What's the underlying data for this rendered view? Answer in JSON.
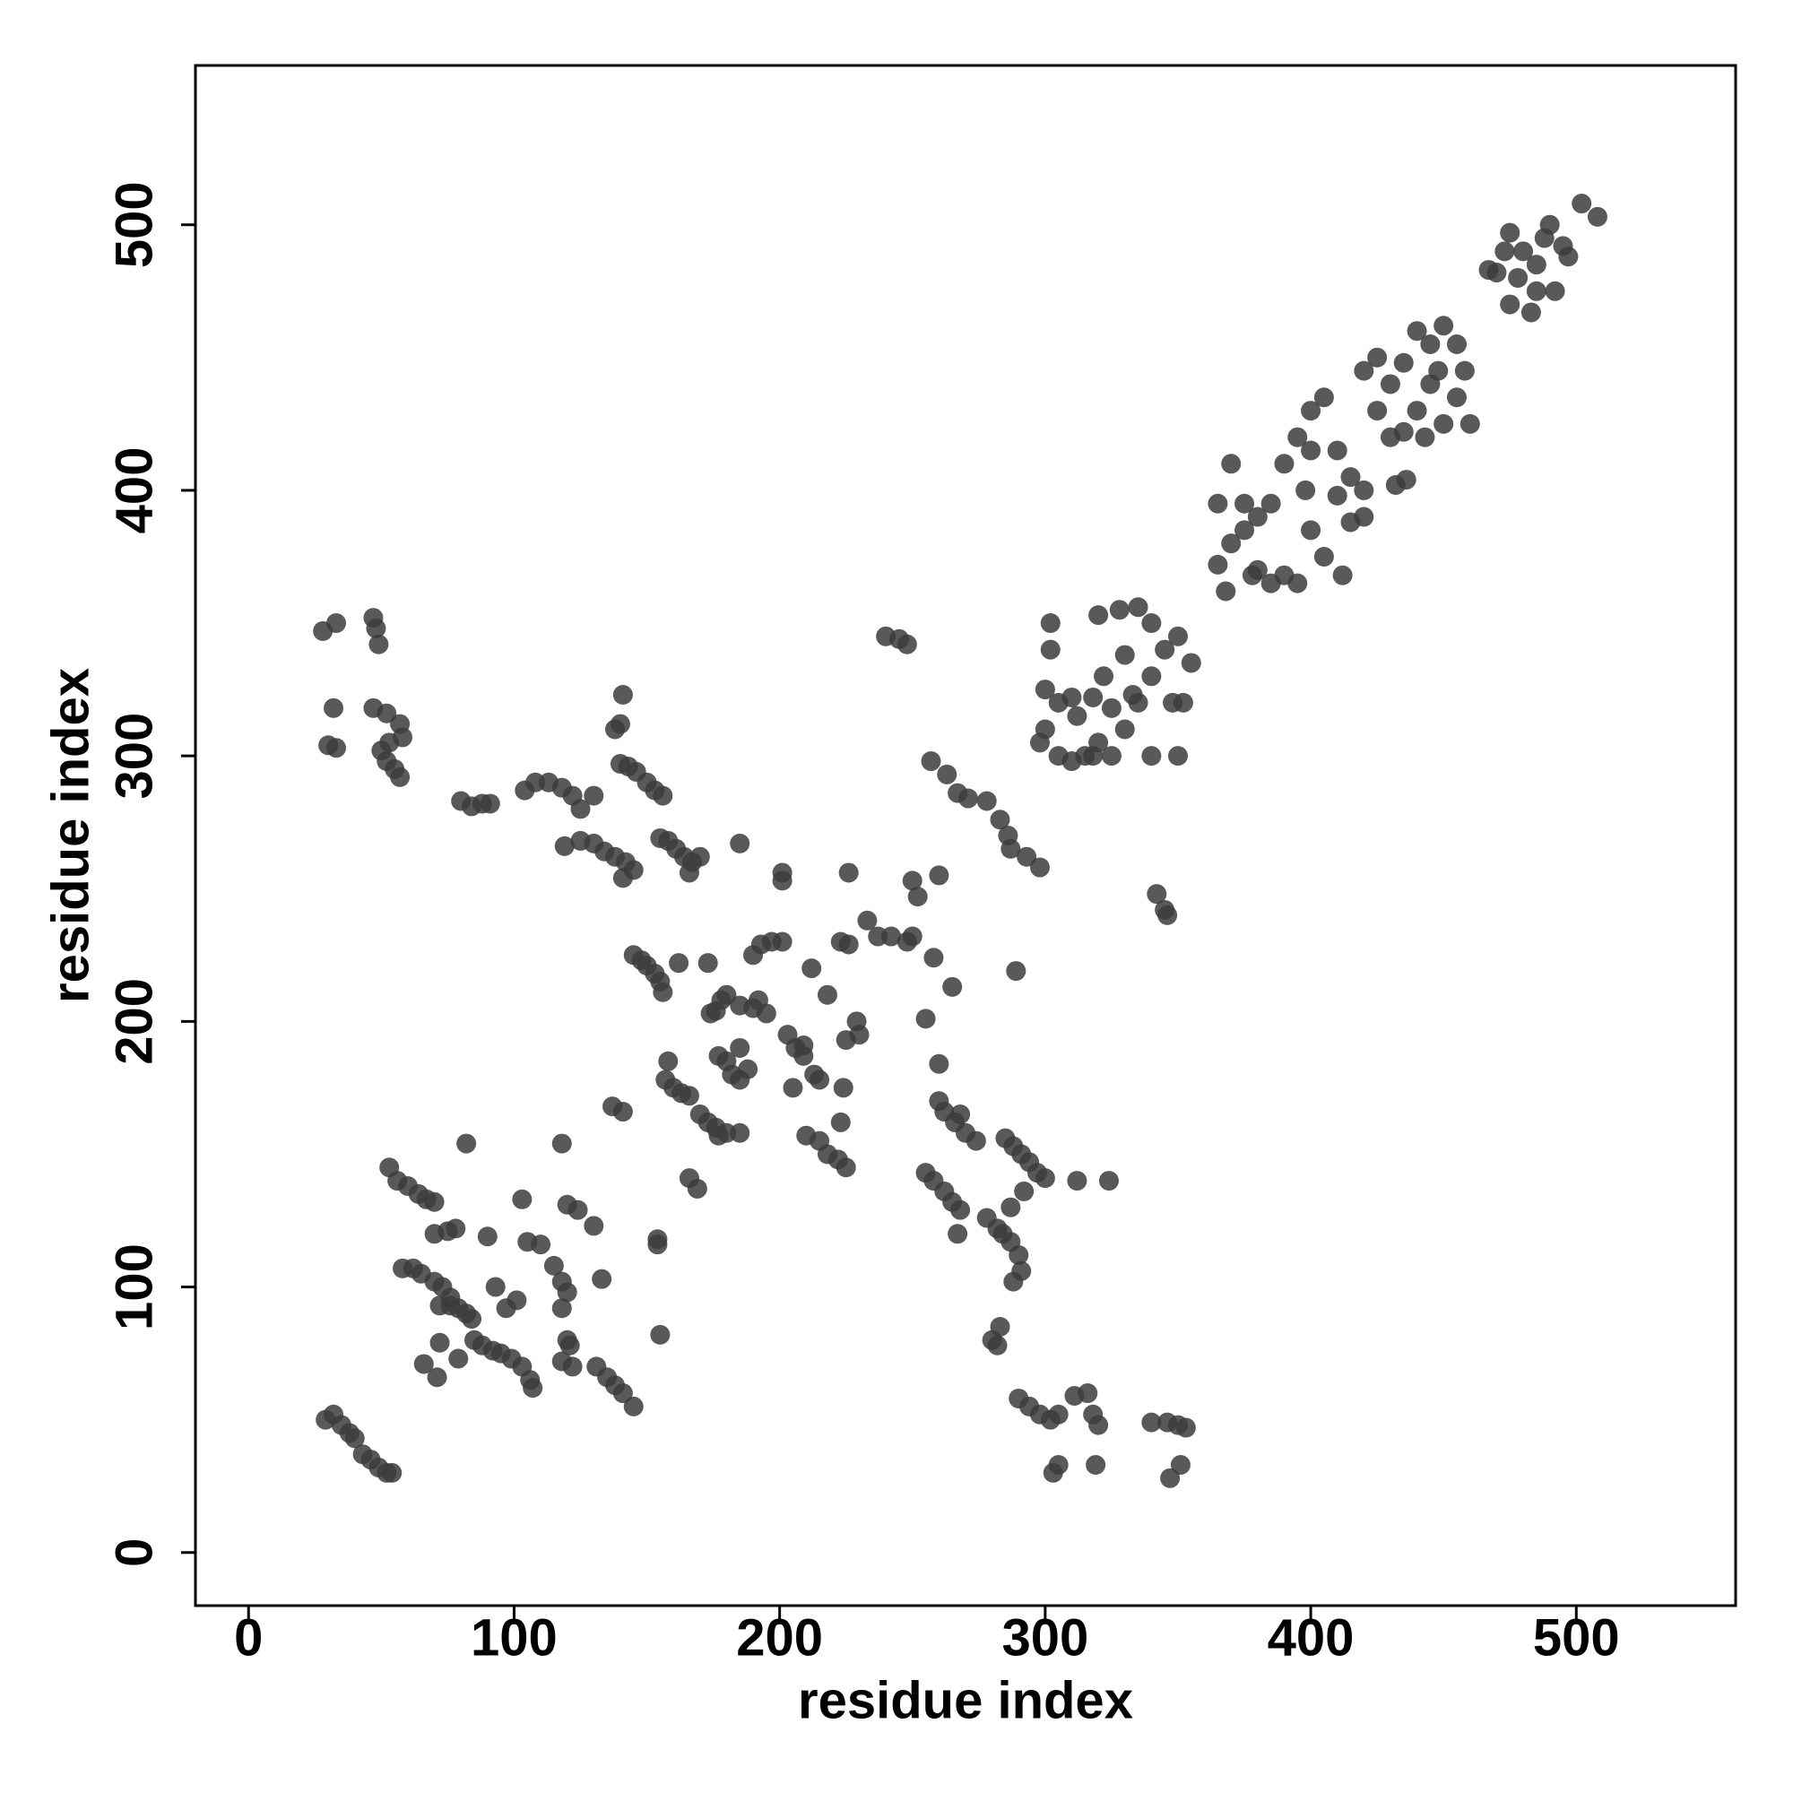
{
  "chart_data": {
    "type": "scatter",
    "xlabel": "residue index",
    "ylabel": "residue index",
    "color": "#3c3c3c",
    "xlim": [
      -20,
      560
    ],
    "ylim": [
      -20,
      560
    ],
    "xticks": [
      0,
      100,
      200,
      300,
      400,
      500
    ],
    "yticks": [
      0,
      100,
      200,
      300,
      400,
      500
    ],
    "x": [
      502,
      508,
      475,
      480,
      485,
      490,
      495,
      478,
      485,
      492,
      497,
      470,
      475,
      483,
      488,
      467,
      473,
      425,
      430,
      435,
      440,
      445,
      450,
      455,
      458,
      445,
      440,
      435,
      430,
      450,
      460,
      425,
      420,
      448,
      455,
      443,
      432,
      436,
      400,
      405,
      410,
      415,
      420,
      400,
      395,
      390,
      385,
      380,
      375,
      370,
      365,
      370,
      375,
      365,
      380,
      390,
      395,
      385,
      400,
      398,
      410,
      420,
      412,
      378,
      405,
      368,
      415,
      300,
      305,
      300,
      298,
      305,
      310,
      315,
      320,
      325,
      330,
      335,
      340,
      345,
      350,
      355,
      352,
      348,
      340,
      350,
      320,
      328,
      335,
      340,
      330,
      322,
      318,
      312,
      325,
      333,
      302,
      302,
      310,
      318,
      240,
      245,
      248,
      342,
      345,
      346,
      28,
      33,
      47,
      48,
      49,
      32,
      47,
      52,
      57,
      58,
      30,
      33,
      50,
      52,
      55,
      57,
      53,
      80,
      84,
      88,
      91,
      104,
      108,
      113,
      118,
      122,
      125,
      130,
      119,
      125,
      140,
      143,
      146,
      150,
      153,
      156,
      140,
      141,
      138,
      130,
      134,
      138,
      142,
      145,
      141,
      155,
      158,
      161,
      164,
      167,
      170,
      166,
      185,
      145,
      148,
      150,
      153,
      155,
      156,
      162,
      173,
      174,
      178,
      180,
      176,
      185,
      190,
      195,
      192,
      177,
      180,
      182,
      185,
      188,
      185,
      157,
      160,
      163,
      166,
      158,
      170,
      173,
      176,
      180,
      185,
      177,
      190,
      193,
      197,
      201,
      201,
      201,
      203,
      206,
      209,
      213,
      215,
      205,
      212,
      218,
      209,
      210,
      215,
      218,
      222,
      225,
      223,
      224,
      225,
      229,
      230,
      226,
      233,
      237,
      242,
      248,
      250,
      252,
      255,
      258,
      265,
      260,
      260,
      262,
      266,
      270,
      274,
      268,
      255,
      258,
      262,
      265,
      268,
      267,
      257,
      263,
      267,
      271,
      278,
      283,
      286,
      287,
      293,
      298,
      289,
      285,
      288,
      291,
      294,
      297,
      300,
      292,
      278,
      282,
      284,
      287,
      290,
      291,
      288,
      287,
      312,
      324,
      280,
      283,
      282,
      290,
      294,
      298,
      302,
      305,
      303,
      305,
      311,
      316,
      318,
      320,
      319,
      340,
      346,
      350,
      353,
      347,
      351,
      29,
      32,
      35,
      38,
      40,
      43,
      46,
      49,
      52,
      54,
      53,
      56,
      60,
      64,
      67,
      70,
      58,
      62,
      65,
      70,
      73,
      76,
      79,
      82,
      84,
      70,
      75,
      78,
      82,
      72,
      76,
      85,
      88,
      92,
      95,
      99,
      103,
      106,
      107,
      97,
      101,
      93,
      90,
      103,
      105,
      110,
      115,
      118,
      120,
      118,
      118,
      120,
      124,
      120,
      121,
      118,
      122,
      130,
      133,
      137,
      141,
      131,
      135,
      138,
      141,
      145,
      154,
      154,
      155,
      66,
      71,
      72,
      79,
      166,
      169,
      223,
      226,
      250,
      260
    ],
    "y": [
      508,
      503,
      497,
      490,
      485,
      500,
      492,
      480,
      475,
      475,
      488,
      482,
      470,
      467,
      495,
      483,
      490,
      450,
      440,
      448,
      460,
      455,
      462,
      455,
      445,
      440,
      430,
      422,
      420,
      425,
      425,
      430,
      445,
      445,
      435,
      420,
      402,
      404,
      430,
      435,
      415,
      405,
      400,
      415,
      420,
      410,
      395,
      390,
      385,
      380,
      395,
      410,
      395,
      372,
      370,
      368,
      365,
      365,
      385,
      400,
      398,
      390,
      368,
      368,
      375,
      362,
      388,
      325,
      320,
      310,
      305,
      300,
      298,
      300,
      305,
      300,
      310,
      320,
      330,
      340,
      345,
      335,
      320,
      320,
      300,
      300,
      353,
      355,
      356,
      350,
      338,
      330,
      322,
      315,
      318,
      323,
      340,
      350,
      322,
      300,
      345,
      344,
      342,
      248,
      242,
      240,
      347,
      350,
      352,
      348,
      342,
      318,
      318,
      316,
      312,
      307,
      304,
      303,
      302,
      298,
      295,
      292,
      305,
      283,
      281,
      282,
      282,
      287,
      290,
      290,
      288,
      285,
      280,
      285,
      266,
      268,
      297,
      296,
      294,
      290,
      287,
      285,
      312,
      323,
      310,
      267,
      264,
      262,
      260,
      257,
      254,
      269,
      268,
      265,
      262,
      260,
      262,
      256,
      267,
      225,
      223,
      221,
      218,
      215,
      211,
      222,
      222,
      203,
      208,
      210,
      204,
      206,
      205,
      203,
      208,
      187,
      185,
      180,
      178,
      182,
      190,
      178,
      175,
      173,
      172,
      185,
      165,
      162,
      160,
      158,
      158,
      157,
      225,
      229,
      230,
      230,
      253,
      256,
      195,
      190,
      187,
      180,
      178,
      175,
      220,
      210,
      191,
      157,
      155,
      150,
      148,
      145,
      162,
      175,
      193,
      200,
      195,
      256,
      238,
      232,
      232,
      230,
      253,
      247,
      201,
      224,
      213,
      184,
      170,
      166,
      162,
      158,
      155,
      165,
      143,
      140,
      136,
      132,
      129,
      120,
      298,
      293,
      286,
      284,
      283,
      276,
      270,
      265,
      262,
      258,
      219,
      156,
      153,
      150,
      147,
      143,
      141,
      136,
      126,
      122,
      120,
      117,
      112,
      106,
      102,
      130,
      140,
      140,
      80,
      85,
      78,
      58,
      55,
      52,
      50,
      52,
      30,
      33,
      59,
      60,
      52,
      48,
      33,
      49,
      49,
      48,
      47,
      28,
      33,
      50,
      52,
      48,
      45,
      43,
      37,
      35,
      32,
      30,
      30,
      145,
      140,
      138,
      135,
      133,
      132,
      107,
      107,
      105,
      102,
      100,
      96,
      92,
      90,
      88,
      120,
      121,
      122,
      154,
      93,
      93,
      80,
      78,
      76,
      75,
      73,
      70,
      65,
      62,
      92,
      95,
      100,
      119,
      133,
      117,
      116,
      108,
      102,
      98,
      92,
      154,
      131,
      129,
      80,
      78,
      72,
      70,
      123,
      103,
      168,
      166,
      70,
      66,
      63,
      60,
      55,
      118,
      116,
      82,
      71,
      66,
      79,
      73,
      141,
      137,
      230,
      229,
      232,
      255
    ]
  }
}
